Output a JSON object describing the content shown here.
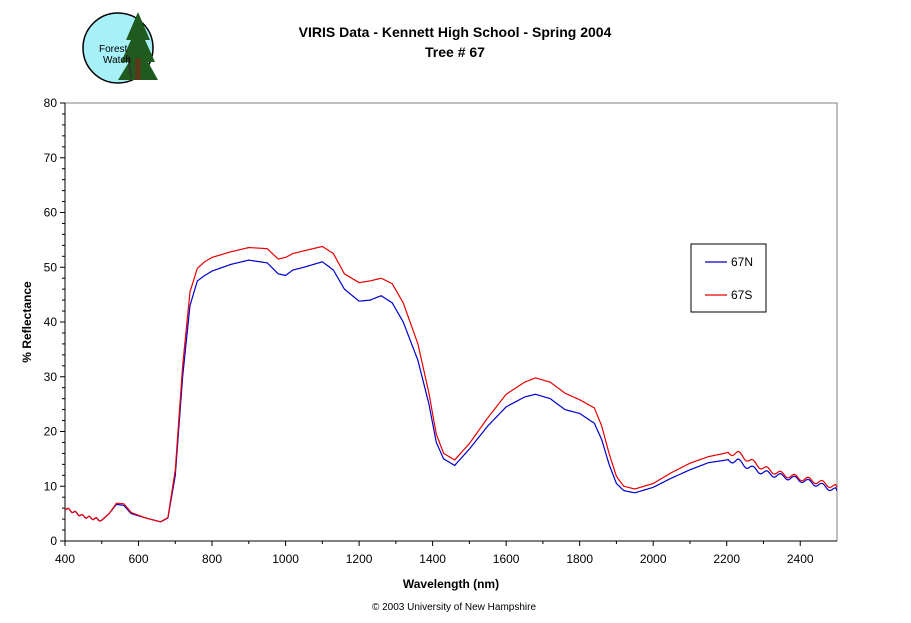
{
  "logo": {
    "line1": "Forest",
    "line2": "Watch"
  },
  "footer": "© 2003 University of New Hampshire",
  "chart_data": {
    "type": "line",
    "title": "VIRIS Data - Kennett High School - Spring 2004",
    "subtitle": "Tree # 67",
    "xlabel": "Wavelength (nm)",
    "ylabel": "% Reflectance",
    "xlim": [
      400,
      2500
    ],
    "ylim": [
      0,
      80
    ],
    "xticks": [
      400,
      600,
      800,
      1000,
      1200,
      1400,
      1600,
      1800,
      2000,
      2200,
      2400
    ],
    "yticks": [
      0,
      10,
      20,
      30,
      40,
      50,
      60,
      70,
      80
    ],
    "grid": false,
    "legend": "right",
    "series": [
      {
        "name": "67N",
        "color": "#0000cc",
        "x": [
          400,
          450,
          500,
          520,
          540,
          560,
          580,
          620,
          660,
          680,
          700,
          720,
          740,
          760,
          780,
          800,
          850,
          900,
          950,
          980,
          1000,
          1020,
          1050,
          1100,
          1130,
          1160,
          1200,
          1230,
          1260,
          1290,
          1320,
          1360,
          1390,
          1410,
          1430,
          1460,
          1500,
          1550,
          1600,
          1650,
          1680,
          1720,
          1760,
          1800,
          1840,
          1860,
          1880,
          1900,
          1920,
          1950,
          2000,
          2050,
          2100,
          2150,
          2200,
          2230,
          2260,
          2300,
          2350,
          2400,
          2450,
          2500
        ],
        "y": [
          6,
          4.5,
          3.8,
          5,
          6.7,
          6.5,
          5,
          4.2,
          3.5,
          4.2,
          12,
          30,
          43,
          47.5,
          48.5,
          49.3,
          50.5,
          51.3,
          50.8,
          48.8,
          48.5,
          49.5,
          50,
          51,
          49.5,
          46,
          43.8,
          44,
          44.8,
          43.5,
          40,
          33,
          25,
          18,
          15,
          13.8,
          16.8,
          21,
          24.5,
          26.3,
          26.8,
          26,
          24,
          23.3,
          21.5,
          18.5,
          14,
          10.5,
          9.2,
          8.8,
          9.8,
          11.5,
          13,
          14.3,
          14.8,
          14.6,
          13.5,
          12.5,
          11.8,
          11.2,
          10.3,
          9.2
        ]
      },
      {
        "name": "67S",
        "color": "#e80000",
        "x": [
          400,
          450,
          500,
          520,
          540,
          560,
          580,
          620,
          660,
          680,
          700,
          720,
          740,
          760,
          780,
          800,
          850,
          900,
          950,
          980,
          1000,
          1020,
          1050,
          1100,
          1130,
          1160,
          1200,
          1230,
          1260,
          1290,
          1320,
          1360,
          1390,
          1410,
          1430,
          1460,
          1500,
          1550,
          1600,
          1650,
          1680,
          1720,
          1760,
          1800,
          1840,
          1860,
          1880,
          1900,
          1920,
          1950,
          2000,
          2050,
          2100,
          2150,
          2200,
          2230,
          2260,
          2300,
          2350,
          2400,
          2450,
          2500
        ],
        "y": [
          6,
          4.5,
          3.8,
          5,
          6.9,
          6.8,
          5.2,
          4.2,
          3.5,
          4.3,
          13,
          32,
          45.5,
          49.8,
          51,
          51.8,
          52.8,
          53.6,
          53.4,
          51.5,
          51.8,
          52.5,
          53,
          53.8,
          52.5,
          48.8,
          47.2,
          47.5,
          48,
          47,
          43.5,
          36,
          27,
          19.5,
          16,
          14.8,
          17.8,
          22.5,
          26.8,
          29,
          29.8,
          29,
          27,
          25.8,
          24.3,
          21,
          16,
          11.8,
          10,
          9.5,
          10.5,
          12.5,
          14.2,
          15.4,
          16.1,
          16,
          14.8,
          13.3,
          12.2,
          11.5,
          10.8,
          9.8
        ]
      }
    ]
  }
}
